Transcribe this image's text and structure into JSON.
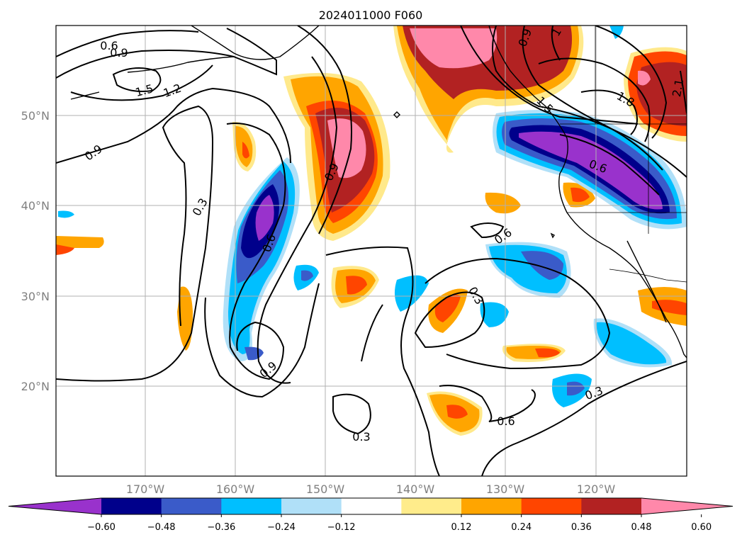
{
  "title": "2024011000 F060",
  "map": {
    "lat_labels": [
      "50°N",
      "40°N",
      "30°N",
      "20°N"
    ],
    "lon_labels": [
      "170°W",
      "160°W",
      "150°W",
      "140°W",
      "130°W",
      "120°W"
    ]
  },
  "colorbar": {
    "colors": [
      "#9932cc",
      "#00008b",
      "#3a5bc9",
      "#00bfff",
      "#b0e0f8",
      "#ffffff",
      "#ffec8b",
      "#ffa500",
      "#ff4500",
      "#b22222",
      "#ff88aa"
    ],
    "tick_labels": [
      "−0.60",
      "−0.48",
      "−0.36",
      "−0.24",
      "−0.12",
      "0.12",
      "0.24",
      "0.36",
      "0.48",
      "0.60"
    ]
  },
  "contour_labels": [
    "0.6",
    "0.9",
    "1.5",
    "1.2",
    "0.9",
    "0.3",
    "0.9",
    "0.6",
    "0.3",
    "0.6",
    "0.3",
    "0.6",
    "0.3",
    "0.9",
    "1.5",
    "1.8",
    "0.6",
    "0.9",
    "1",
    "2.1"
  ]
}
